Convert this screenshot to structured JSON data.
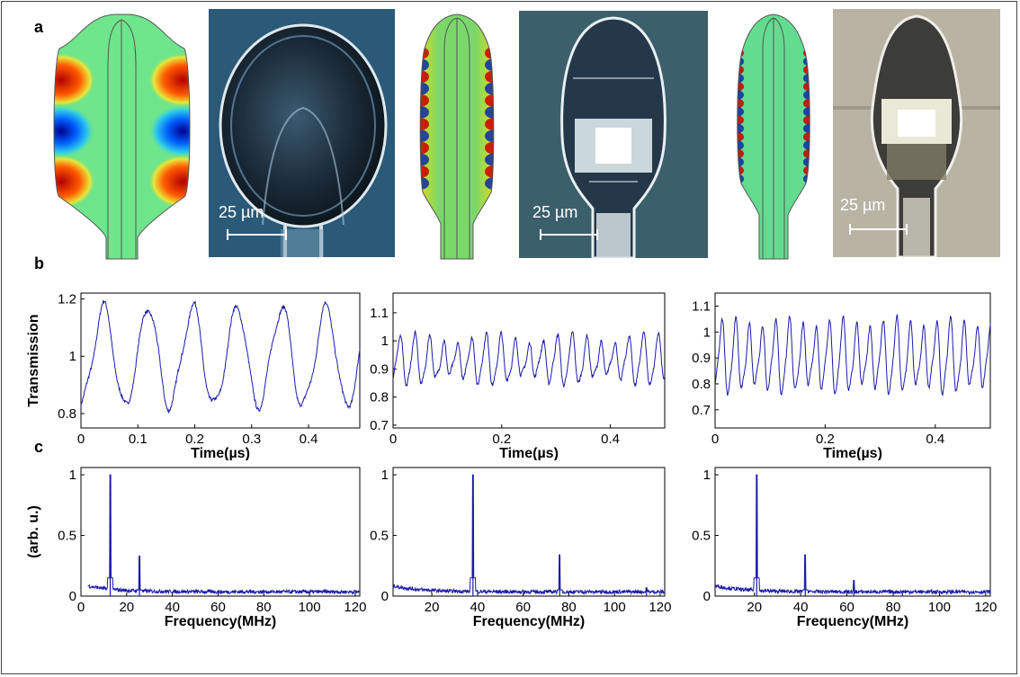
{
  "panel_labels": {
    "a": "a",
    "b": "b",
    "c": "c"
  },
  "scale_bar_label": "25 µm",
  "chart_data": [
    {
      "type": "line",
      "panel": "b",
      "xlabel": "Time(µs)",
      "ylabel": "Transmission",
      "xlim": [
        0,
        0.49
      ],
      "ylim": [
        0.75,
        1.22
      ],
      "xticks": [
        "0",
        "0.1",
        "0.2",
        "0.3",
        "0.4"
      ],
      "xtick_values": [
        0,
        0.1,
        0.2,
        0.3,
        0.4
      ],
      "yticks": [
        "0.8",
        "1",
        "1.2"
      ],
      "ytick_values": [
        0.8,
        1.0,
        1.2
      ],
      "series": [
        {
          "frequency_MHz": 12.8,
          "mean": 0.995,
          "amplitude": 0.17,
          "values_range": [
            0.77,
            1.17
          ]
        }
      ]
    },
    {
      "type": "line",
      "panel": "b",
      "xlabel": "Time(µs)",
      "ylabel": "",
      "xlim": [
        0,
        0.5
      ],
      "ylim": [
        0.69,
        1.17
      ],
      "xticks": [
        "0",
        "0.2",
        "0.4"
      ],
      "xtick_values": [
        0,
        0.2,
        0.4
      ],
      "yticks": [
        "0.7",
        "0.8",
        "0.9",
        "1",
        "1.1"
      ],
      "ytick_values": [
        0.7,
        0.8,
        0.9,
        1.0,
        1.1
      ],
      "series": [
        {
          "frequency_MHz": 38,
          "mean": 0.93,
          "amplitude": 0.07,
          "values_range": [
            0.83,
            1.09
          ]
        }
      ]
    },
    {
      "type": "line",
      "panel": "b",
      "xlabel": "Time(µs)",
      "ylabel": "",
      "xlim": [
        0,
        0.5
      ],
      "ylim": [
        0.63,
        1.15
      ],
      "xticks": [
        "0",
        "0.2",
        "0.4"
      ],
      "xtick_values": [
        0,
        0.2,
        0.4
      ],
      "yticks": [
        "0.7",
        "0.8",
        "0.9",
        "1",
        "1.1"
      ],
      "ytick_values": [
        0.7,
        0.8,
        0.9,
        1.0,
        1.1
      ],
      "series": [
        {
          "frequency_MHz": 41,
          "mean": 0.9,
          "amplitude": 0.12,
          "values_range": [
            0.74,
            1.1
          ]
        }
      ]
    },
    {
      "type": "line",
      "panel": "c",
      "xlabel": "Frequency(MHz)",
      "ylabel": "(arb. u.)",
      "xlim": [
        0,
        122
      ],
      "ylim": [
        0,
        1.06
      ],
      "xticks": [
        "0",
        "20",
        "40",
        "60",
        "80",
        "100",
        "120"
      ],
      "xtick_values": [
        0,
        20,
        40,
        60,
        80,
        100,
        120
      ],
      "yticks": [
        "0",
        "0.5",
        "1"
      ],
      "ytick_values": [
        0,
        0.5,
        1
      ],
      "series": [
        {
          "peaks": [
            {
              "x": 12.8,
              "y": 1.0
            },
            {
              "x": 25.6,
              "y": 0.33
            }
          ]
        }
      ]
    },
    {
      "type": "line",
      "panel": "c",
      "xlabel": "Frequency(MHz)",
      "ylabel": "",
      "xlim": [
        3,
        122
      ],
      "ylim": [
        0,
        1.06
      ],
      "xticks": [
        "20",
        "40",
        "60",
        "80",
        "100",
        "120"
      ],
      "xtick_values": [
        20,
        40,
        60,
        80,
        100,
        120
      ],
      "yticks": [
        "0",
        "0.5",
        "1"
      ],
      "ytick_values": [
        0,
        0.5,
        1
      ],
      "series": [
        {
          "peaks": [
            {
              "x": 38,
              "y": 1.0
            },
            {
              "x": 76,
              "y": 0.34
            },
            {
              "x": 114,
              "y": 0.07
            }
          ]
        }
      ]
    },
    {
      "type": "line",
      "panel": "c",
      "xlabel": "Frequency(MHz)",
      "ylabel": "",
      "xlim": [
        3,
        122
      ],
      "ylim": [
        0,
        1.06
      ],
      "xticks": [
        "20",
        "40",
        "60",
        "80",
        "100",
        "120"
      ],
      "xtick_values": [
        20,
        40,
        60,
        80,
        100,
        120
      ],
      "yticks": [
        "0",
        "0.5",
        "1"
      ],
      "ytick_values": [
        0,
        0.5,
        1
      ],
      "series": [
        {
          "peaks": [
            {
              "x": 21,
              "y": 1.0
            },
            {
              "x": 42,
              "y": 0.34
            },
            {
              "x": 63,
              "y": 0.13
            },
            {
              "x": 84,
              "y": 0.04
            }
          ]
        }
      ]
    }
  ]
}
